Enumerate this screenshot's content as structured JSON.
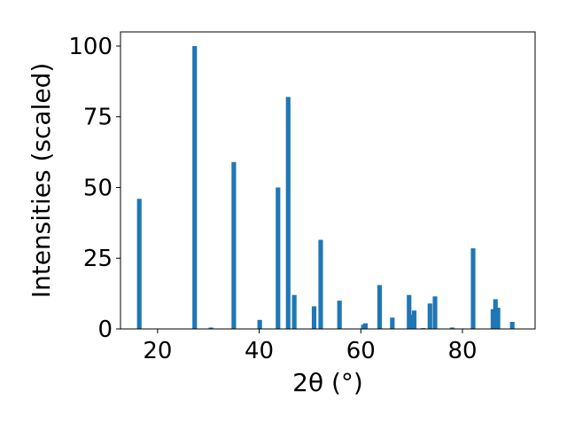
{
  "chart_data": {
    "type": "bar",
    "title": "",
    "xlabel": "2θ (°)",
    "ylabel": "Intensities (scaled)",
    "xlim": [
      12.7,
      94.3
    ],
    "ylim": [
      0,
      105
    ],
    "xticks": [
      20,
      40,
      60,
      80
    ],
    "yticks": [
      0,
      25,
      50,
      75,
      100
    ],
    "grid": false,
    "bar_color": "#1f77b4",
    "bar_width": 0.9,
    "series": [
      {
        "x": [
          16.4,
          27.3,
          30.5,
          35.0,
          40.1,
          43.7,
          45.7,
          46.9,
          50.8,
          52.1,
          55.8,
          60.5,
          60.9,
          63.7,
          66.2,
          69.5,
          70.0,
          70.5,
          72.3,
          73.6,
          74.6,
          78.0,
          82.1,
          86.0,
          86.5,
          87.0,
          89.8
        ],
        "values": [
          46,
          100,
          0.5,
          59,
          3.2,
          50,
          82,
          12,
          8,
          31.5,
          10,
          1.5,
          2,
          15.5,
          4,
          12,
          5,
          6.5,
          0.3,
          9,
          11.5,
          0.5,
          28.5,
          7,
          10.5,
          7.5,
          2.5
        ]
      }
    ]
  }
}
